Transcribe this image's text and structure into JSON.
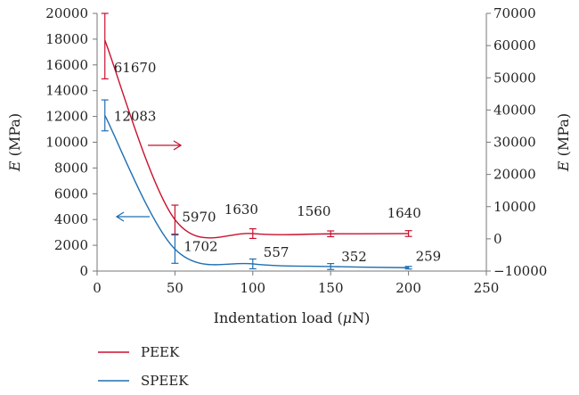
{
  "chart_data": {
    "type": "line",
    "x": [
      5,
      50,
      100,
      150,
      200
    ],
    "xlabel_prefix": "Indentation load (",
    "xlabel_unit_italic": "μ",
    "xlabel_suffix": "N)",
    "xlim": [
      0,
      250
    ],
    "x_ticks": [
      "0",
      "50",
      "100",
      "150",
      "200",
      "250"
    ],
    "ylabel_left_italic": "E",
    "ylabel_left_rest": " (MPa)",
    "ylim_left": [
      0,
      20000
    ],
    "y_ticks_left": [
      "0",
      "2000",
      "4000",
      "6000",
      "8000",
      "10000",
      "12000",
      "14000",
      "16000",
      "18000",
      "20000"
    ],
    "ylabel_right_italic": "E",
    "ylabel_right_rest": " (MPa)",
    "ylim_right": [
      -10000,
      70000
    ],
    "y_ticks_right": [
      "−10000",
      "0",
      "10000",
      "20000",
      "30000",
      "40000",
      "50000",
      "60000",
      "70000"
    ],
    "series": [
      {
        "name": "PEEK",
        "axis": "right",
        "color": "#c8102e",
        "values": [
          61670,
          5970,
          1630,
          1560,
          1640
        ],
        "labels": [
          "61670",
          "5970",
          "1630",
          "1560",
          "1640"
        ],
        "error": [
          12000,
          4500,
          1500,
          900,
          900
        ]
      },
      {
        "name": "SPEEK",
        "axis": "left",
        "color": "#1f6fb2",
        "values": [
          12083,
          1702,
          557,
          352,
          259
        ],
        "labels": [
          "12083",
          "1702",
          "557",
          "352",
          "259"
        ],
        "error": [
          1200,
          1100,
          380,
          230,
          100
        ]
      }
    ],
    "arrows": [
      {
        "series": "PEEK",
        "direction": "right",
        "color": "#c8102e"
      },
      {
        "series": "SPEEK",
        "direction": "left",
        "color": "#1f6fb2"
      }
    ],
    "legend_position": "bottom-left"
  }
}
